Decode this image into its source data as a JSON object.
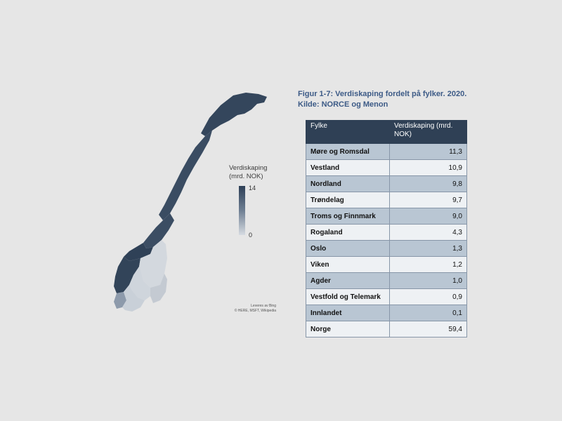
{
  "figure": {
    "caption": "Figur 1-7: Verdiskaping fordelt på fylker. 2020. Kilde: NORCE og Menon"
  },
  "legend": {
    "title_line1": "Verdiskaping",
    "title_line2": "(mrd. NOK)",
    "max": "14",
    "min": "0"
  },
  "map_credits": {
    "line1": "Leveres av Bing",
    "line2": "© HERE, MSFT, Wikipedia"
  },
  "table": {
    "headers": [
      "Fylke",
      "Verdiskaping (mrd. NOK)"
    ],
    "rows": [
      {
        "fylke": "Møre og Romsdal",
        "verdi": "11,3"
      },
      {
        "fylke": "Vestland",
        "verdi": "10,9"
      },
      {
        "fylke": "Nordland",
        "verdi": "9,8"
      },
      {
        "fylke": "Trøndelag",
        "verdi": "9,7"
      },
      {
        "fylke": "Troms og Finnmark",
        "verdi": "9,0"
      },
      {
        "fylke": "Rogaland",
        "verdi": "4,3"
      },
      {
        "fylke": "Oslo",
        "verdi": "1,3"
      },
      {
        "fylke": "Viken",
        "verdi": "1,2"
      },
      {
        "fylke": "Agder",
        "verdi": "1,0"
      },
      {
        "fylke": "Vestfold og Telemark",
        "verdi": "0,9"
      },
      {
        "fylke": "Innlandet",
        "verdi": "0,1"
      },
      {
        "fylke": "Norge",
        "verdi": "59,4"
      }
    ]
  },
  "colors": {
    "dark": "#2d3f56",
    "light": "#d6dbe1",
    "header": "#2f4055",
    "row_alt": "#b9c6d3",
    "caption": "#3c5a86"
  }
}
